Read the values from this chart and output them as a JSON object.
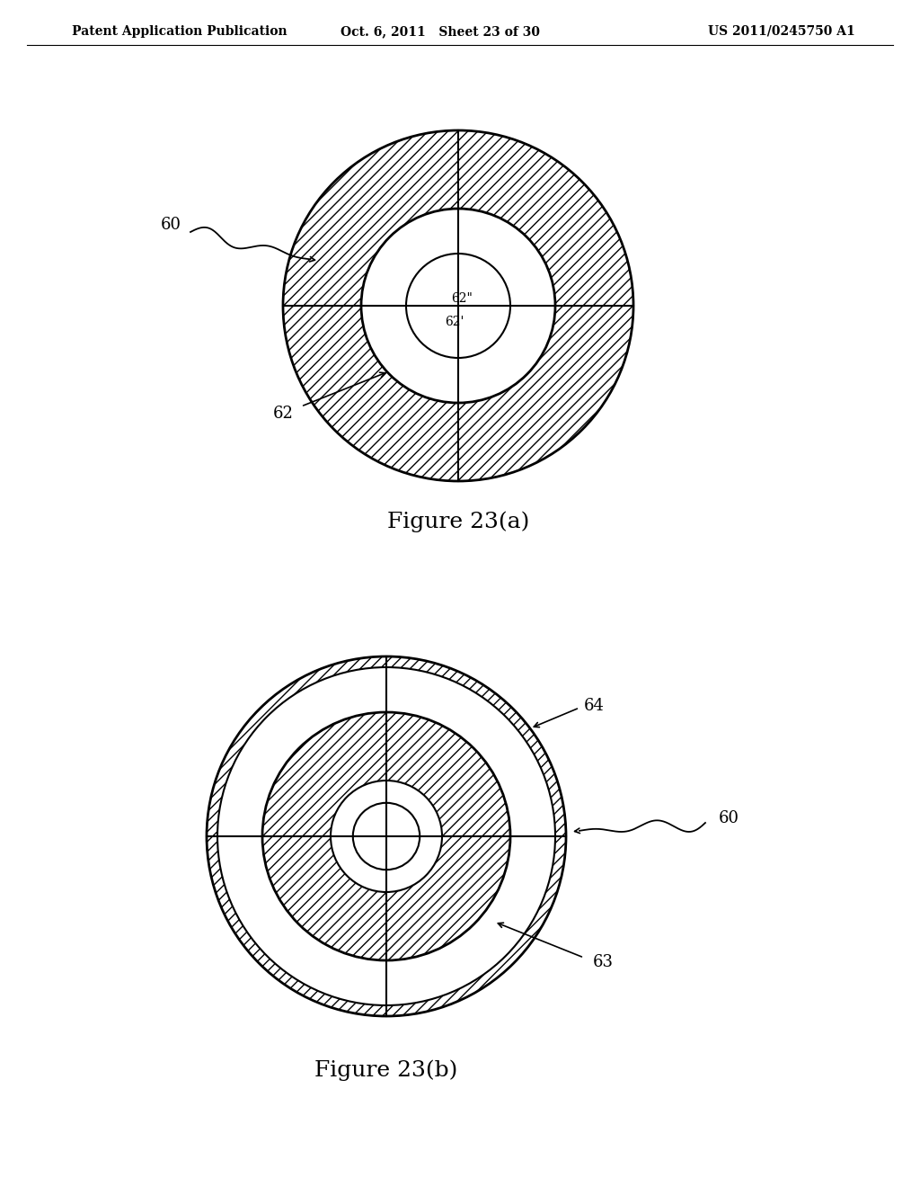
{
  "title_left": "Patent Application Publication",
  "title_mid": "Oct. 6, 2011   Sheet 23 of 30",
  "title_right": "US 2011/0245750 A1",
  "fig_a_title": "Figure 23(a)",
  "fig_b_title": "Figure 23(b)",
  "bg_color": "#ffffff",
  "font_size_header": 10,
  "font_size_fig_title": 18,
  "font_size_label": 13,
  "font_size_inner_label": 10,
  "lw": 1.5,
  "lw_thick": 2.0
}
